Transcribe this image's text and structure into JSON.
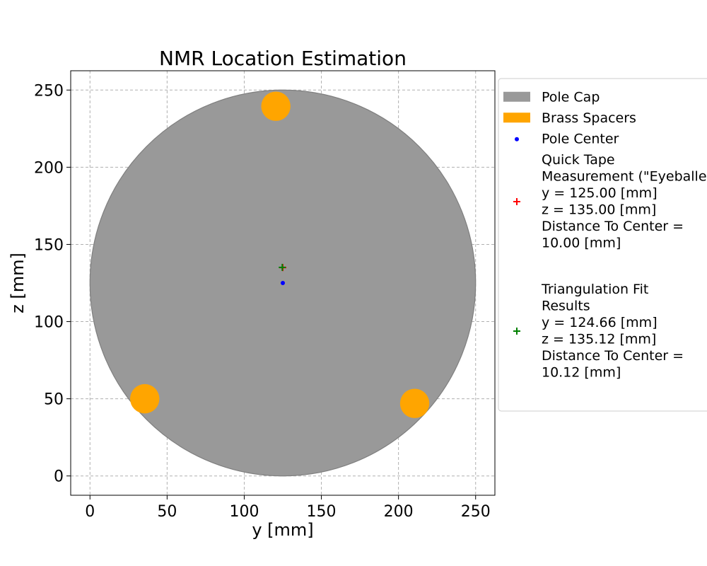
{
  "chart_data": {
    "type": "scatter",
    "title": "NMR Location Estimation",
    "xlabel": "y [mm]",
    "ylabel": "z [mm]",
    "xlim": [
      -12.5,
      262.5
    ],
    "ylim": [
      -12.5,
      262.5
    ],
    "xticks": [
      0,
      50,
      100,
      150,
      200,
      250
    ],
    "yticks": [
      0,
      50,
      100,
      150,
      200,
      250
    ],
    "grid": true,
    "legend_placement": "outside-right",
    "pole_cap": {
      "center": [
        125,
        125
      ],
      "radius": 125,
      "color": "#999999"
    },
    "brass_spacers": {
      "radius": 9.5,
      "color": "#ffa500",
      "points": [
        [
          120.5,
          239.5
        ],
        [
          35.5,
          50
        ],
        [
          210.5,
          47
        ]
      ]
    },
    "pole_center": {
      "point": [
        125,
        125
      ],
      "color": "#0000ff"
    },
    "quick_tape": {
      "point": [
        125,
        135
      ],
      "color": "#ff0000"
    },
    "triangulation": {
      "point": [
        124.66,
        135.12
      ],
      "color": "#008000"
    }
  },
  "legend": [
    {
      "kind": "patch",
      "color": "#999999",
      "lines": [
        "Pole Cap"
      ]
    },
    {
      "kind": "patch",
      "color": "#ffa500",
      "lines": [
        "Brass Spacers"
      ]
    },
    {
      "kind": "dot",
      "color": "#0000ff",
      "lines": [
        "Pole Center"
      ]
    },
    {
      "kind": "plus",
      "color": "#ff0000",
      "lines": [
        "Quick Tape",
        "Measurement (\"Eyeballed\")",
        "y = 125.00 [mm]",
        "z = 135.00 [mm]",
        "Distance To Center =",
        "10.00 [mm]"
      ]
    },
    {
      "kind": "plus",
      "color": "#008000",
      "lines": [
        "Triangulation Fit",
        "Results",
        "y = 124.66 [mm]",
        "z = 135.12 [mm]",
        "Distance To Center =",
        "10.12 [mm]"
      ]
    }
  ]
}
